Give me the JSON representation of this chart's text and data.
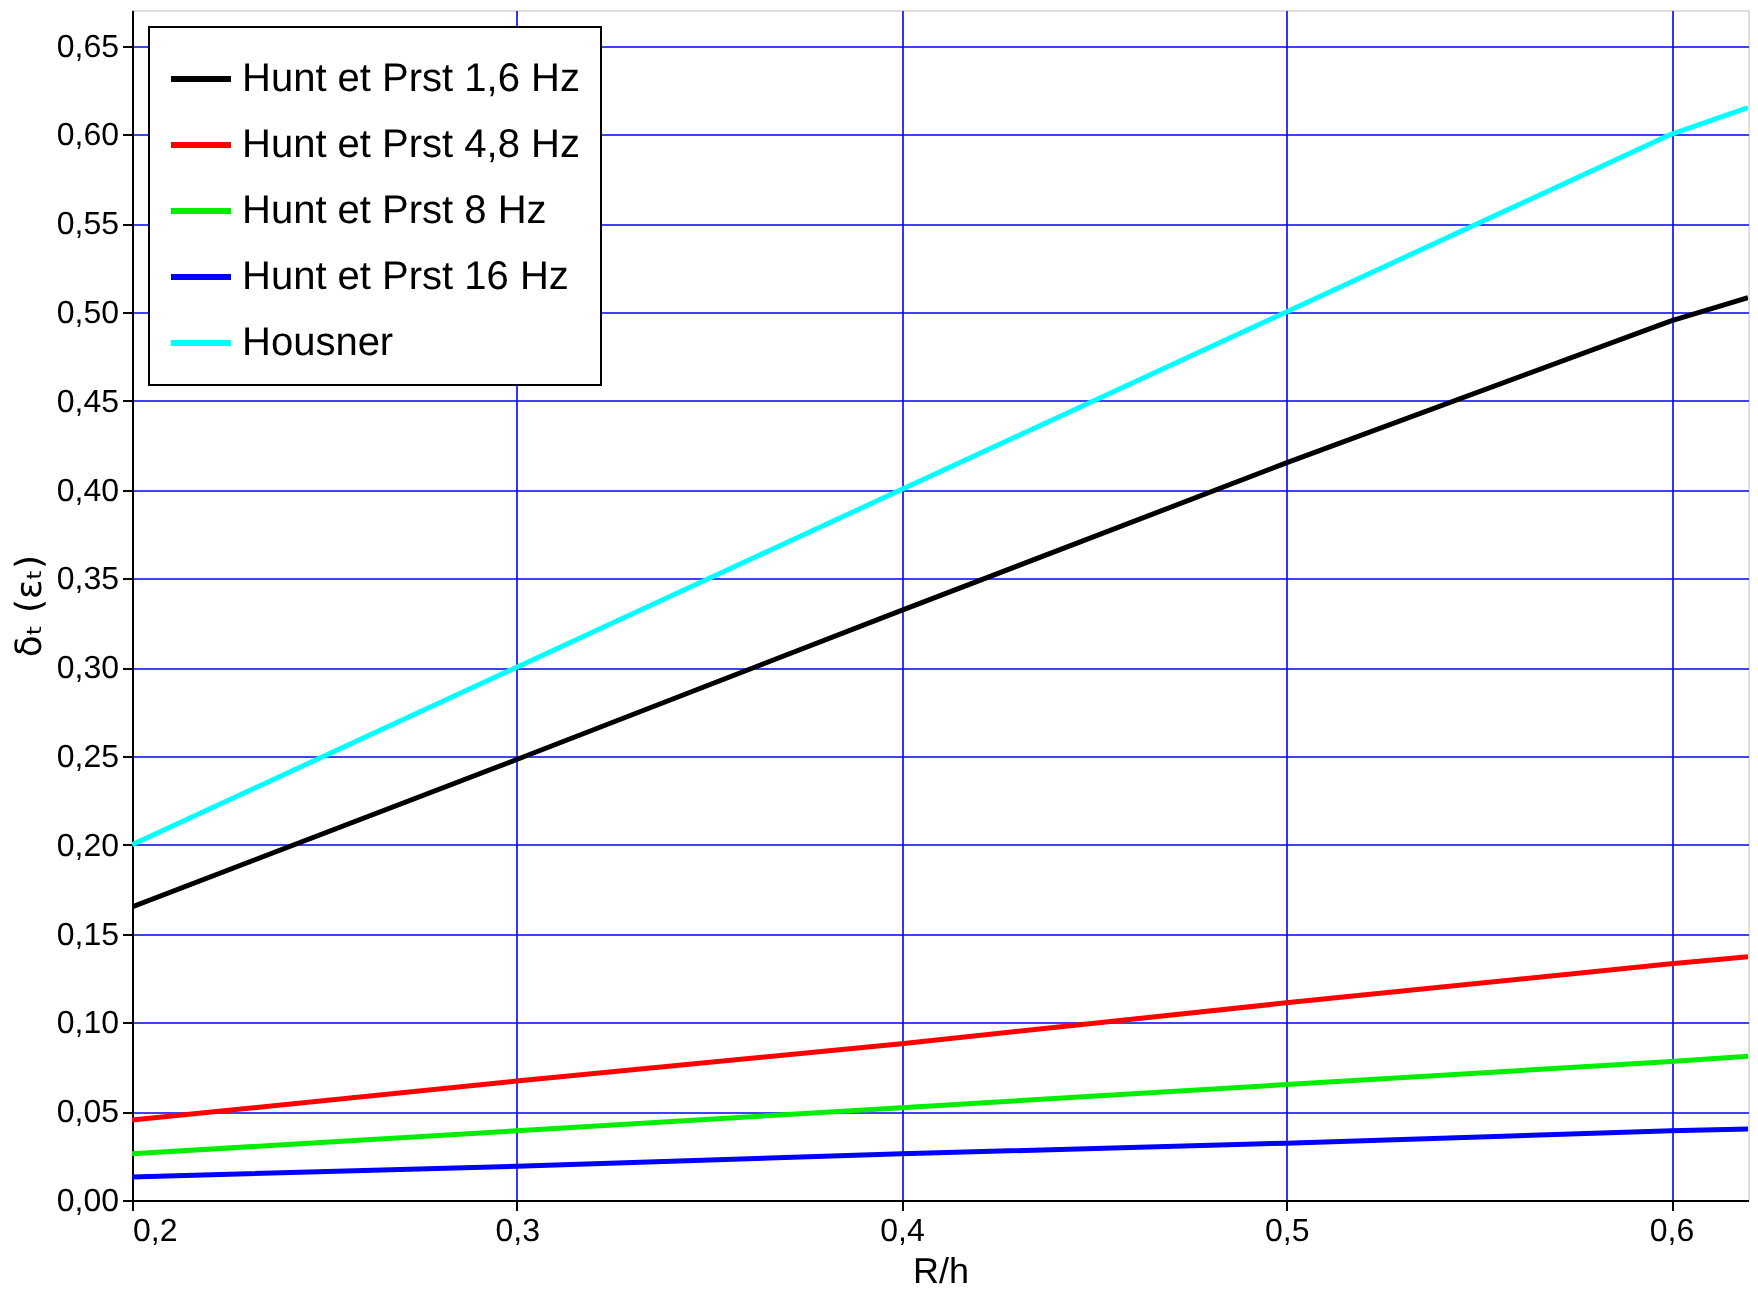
{
  "chart_data": {
    "type": "line",
    "xlabel": "R/h",
    "ylabel": "δₜ (εₜ)",
    "x": [
      0.2,
      0.3,
      0.4,
      0.5,
      0.6,
      0.62
    ],
    "series": [
      {
        "name": "Hunt et Prst 1,6 Hz",
        "color": "#000000",
        "values": [
          0.165,
          0.248,
          0.332,
          0.415,
          0.495,
          0.508
        ]
      },
      {
        "name": "Hunt et Prst 4,8 Hz",
        "color": "#ff0000",
        "values": [
          0.045,
          0.067,
          0.088,
          0.111,
          0.133,
          0.137
        ]
      },
      {
        "name": "Hunt et Prst 8 Hz",
        "color": "#00ee00",
        "values": [
          0.026,
          0.039,
          0.052,
          0.065,
          0.078,
          0.081
        ]
      },
      {
        "name": "Hunt et Prst 16 Hz",
        "color": "#0000ff",
        "values": [
          0.013,
          0.019,
          0.026,
          0.032,
          0.039,
          0.04
        ]
      },
      {
        "name": "Housner",
        "color": "#00ffff",
        "values": [
          0.2,
          0.3,
          0.4,
          0.5,
          0.6,
          0.615
        ]
      }
    ],
    "xlim": [
      0.2,
      0.62
    ],
    "ylim": [
      0,
      0.67
    ],
    "xticks": [
      {
        "value": 0.2,
        "label": "0,2"
      },
      {
        "value": 0.3,
        "label": "0,3"
      },
      {
        "value": 0.4,
        "label": "0,4"
      },
      {
        "value": 0.5,
        "label": "0,5"
      },
      {
        "value": 0.6,
        "label": "0,6"
      }
    ],
    "yticks": [
      {
        "value": 0,
        "label": "0,00"
      },
      {
        "value": 0.05,
        "label": "0,05"
      },
      {
        "value": 0.1,
        "label": "0,10"
      },
      {
        "value": 0.15,
        "label": "0,15"
      },
      {
        "value": 0.2,
        "label": "0,20"
      },
      {
        "value": 0.25,
        "label": "0,25"
      },
      {
        "value": 0.3,
        "label": "0,30"
      },
      {
        "value": 0.35,
        "label": "0,35"
      },
      {
        "value": 0.4,
        "label": "0,40"
      },
      {
        "value": 0.45,
        "label": "0,45"
      },
      {
        "value": 0.5,
        "label": "0,50"
      },
      {
        "value": 0.55,
        "label": "0,55"
      },
      {
        "value": 0.6,
        "label": "0,60"
      },
      {
        "value": 0.65,
        "label": "0,65"
      }
    ],
    "grid": true,
    "legend": "top left",
    "line_style": "solid",
    "marker": "none"
  }
}
